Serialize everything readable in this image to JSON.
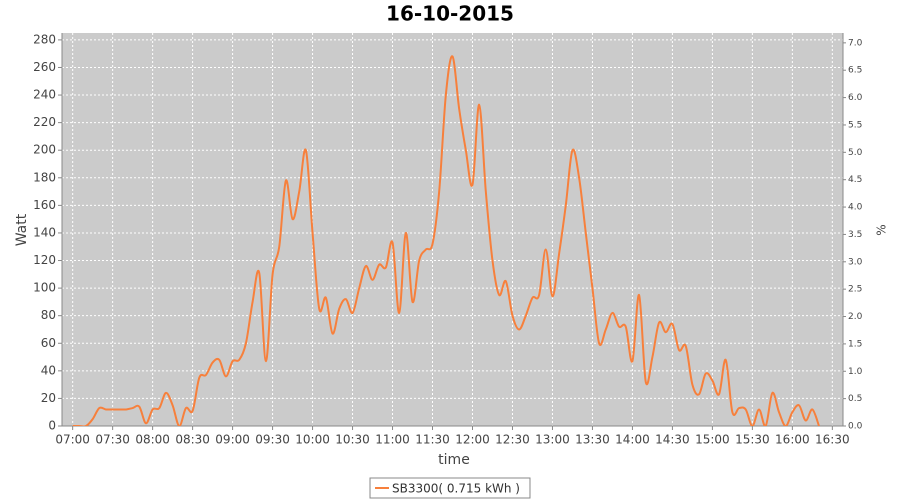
{
  "chart_data": {
    "type": "line",
    "title": "16-10-2015",
    "x_label": "time",
    "y_label": "Watt",
    "y2_label": "%",
    "x": [
      "07:00",
      "07:05",
      "07:10",
      "07:15",
      "07:20",
      "07:25",
      "07:30",
      "07:35",
      "07:40",
      "07:45",
      "07:50",
      "07:55",
      "08:00",
      "08:05",
      "08:10",
      "08:15",
      "08:20",
      "08:25",
      "08:30",
      "08:35",
      "08:40",
      "08:45",
      "08:50",
      "08:55",
      "09:00",
      "09:05",
      "09:10",
      "09:15",
      "09:20",
      "09:25",
      "09:30",
      "09:35",
      "09:40",
      "09:45",
      "09:50",
      "09:55",
      "10:00",
      "10:05",
      "10:10",
      "10:15",
      "10:20",
      "10:25",
      "10:30",
      "10:35",
      "10:40",
      "10:45",
      "10:50",
      "10:55",
      "11:00",
      "11:05",
      "11:10",
      "11:15",
      "11:20",
      "11:25",
      "11:30",
      "11:35",
      "11:40",
      "11:45",
      "11:50",
      "11:55",
      "12:00",
      "12:05",
      "12:10",
      "12:15",
      "12:20",
      "12:25",
      "12:30",
      "12:35",
      "12:40",
      "12:45",
      "12:50",
      "12:55",
      "13:00",
      "13:05",
      "13:10",
      "13:15",
      "13:20",
      "13:25",
      "13:30",
      "13:35",
      "13:40",
      "13:45",
      "13:50",
      "13:55",
      "14:00",
      "14:05",
      "14:10",
      "14:15",
      "14:20",
      "14:25",
      "14:30",
      "14:35",
      "14:40",
      "14:45",
      "14:50",
      "14:55",
      "15:00",
      "15:05",
      "15:10",
      "15:15",
      "15:20",
      "15:25",
      "15:30",
      "15:35",
      "15:40",
      "15:45",
      "15:50",
      "15:55",
      "16:00",
      "16:05",
      "16:10",
      "16:15",
      "16:20"
    ],
    "series": [
      {
        "name": "SB3300( 0.715 kWh )",
        "color": "#f7803c",
        "values": [
          0,
          0,
          0,
          5,
          13,
          12,
          12,
          12,
          12,
          13,
          14,
          2,
          12,
          13,
          24,
          15,
          0,
          13,
          11,
          35,
          37,
          46,
          48,
          36,
          47,
          48,
          60,
          90,
          111,
          47,
          110,
          130,
          178,
          150,
          170,
          200,
          140,
          85,
          93,
          67,
          85,
          92,
          82,
          100,
          116,
          106,
          117,
          115,
          133,
          82,
          140,
          90,
          120,
          128,
          132,
          170,
          240,
          268,
          230,
          200,
          175,
          233,
          170,
          120,
          95,
          105,
          80,
          70,
          80,
          93,
          95,
          128,
          94,
          125,
          160,
          200,
          180,
          140,
          100,
          60,
          70,
          82,
          72,
          72,
          47,
          95,
          32,
          50,
          75,
          68,
          74,
          55,
          58,
          30,
          23,
          38,
          33,
          23,
          48,
          10,
          13,
          12,
          0,
          12,
          0,
          24,
          10,
          0,
          10,
          15,
          4,
          12,
          0
        ]
      }
    ],
    "xlim": [
      "06:52",
      "16:38"
    ],
    "xticks": [
      "07:00",
      "07:30",
      "08:00",
      "08:30",
      "09:00",
      "09:30",
      "10:00",
      "10:30",
      "11:00",
      "11:30",
      "12:00",
      "12:30",
      "13:00",
      "13:30",
      "14:00",
      "14:30",
      "15:00",
      "15:30",
      "16:00",
      "16:30"
    ],
    "ylim": [
      0,
      285
    ],
    "yticks": [
      0,
      20,
      40,
      60,
      80,
      100,
      120,
      140,
      160,
      180,
      200,
      220,
      240,
      260,
      280
    ],
    "y2lim": [
      0,
      7.18
    ],
    "y2ticks": [
      {
        "value": 0,
        "label": "0.0"
      },
      {
        "value": 0.5,
        "label": "0.5"
      },
      {
        "value": 1,
        "label": "1.0"
      },
      {
        "value": 1.5,
        "label": "1.5"
      },
      {
        "value": 2,
        "label": "2.0"
      },
      {
        "value": 2.5,
        "label": "2.5"
      },
      {
        "value": 3,
        "label": "3.0"
      },
      {
        "value": 3.5,
        "label": "3.5"
      },
      {
        "value": 4,
        "label": "4.0"
      },
      {
        "value": 4.5,
        "label": "4.5"
      },
      {
        "value": 5,
        "label": "5.0"
      },
      {
        "value": 5.5,
        "label": "5.5"
      },
      {
        "value": 6,
        "label": "6.0"
      },
      {
        "value": 6.5,
        "label": "6.5"
      },
      {
        "value": 7,
        "label": "7.0"
      }
    ],
    "grid": true,
    "plot_background": "#cbcbcb",
    "legend": "bottom"
  }
}
